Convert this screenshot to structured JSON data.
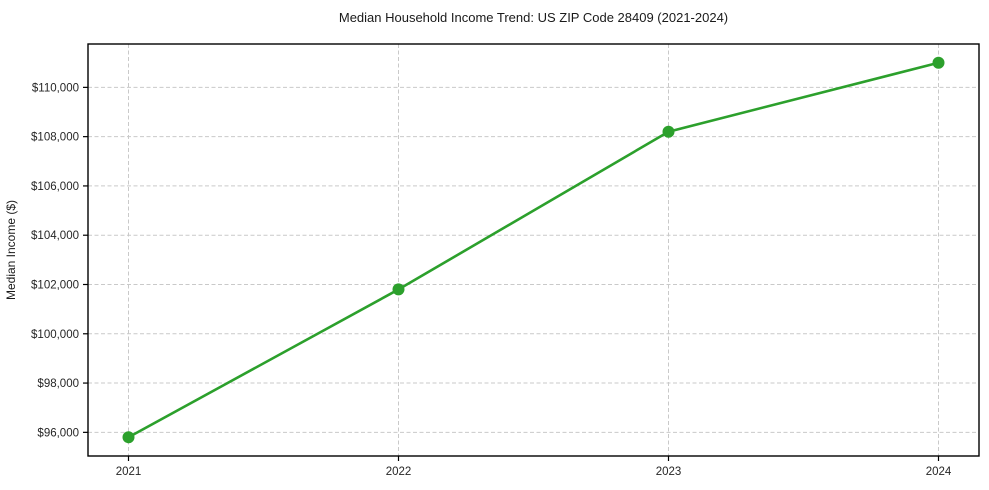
{
  "chart_data": {
    "type": "line",
    "title": "Median Household Income Trend: US ZIP Code 28409 (2021-2024)",
    "xlabel": "",
    "ylabel": "Median Income ($)",
    "x": [
      2021,
      2022,
      2023,
      2024
    ],
    "series": [
      {
        "name": "Median Household Income",
        "values": [
          95800,
          101800,
          108200,
          111000
        ]
      }
    ],
    "x_ticks": [
      {
        "value": 2021,
        "label": "2021"
      },
      {
        "value": 2022,
        "label": "2022"
      },
      {
        "value": 2023,
        "label": "2023"
      },
      {
        "value": 2024,
        "label": "2024"
      }
    ],
    "y_ticks": [
      {
        "value": 96000,
        "label": "$96,000"
      },
      {
        "value": 98000,
        "label": "$98,000"
      },
      {
        "value": 100000,
        "label": "$100,000"
      },
      {
        "value": 102000,
        "label": "$102,000"
      },
      {
        "value": 104000,
        "label": "$104,000"
      },
      {
        "value": 106000,
        "label": "$106,000"
      },
      {
        "value": 108000,
        "label": "$108,000"
      },
      {
        "value": 110000,
        "label": "$110,000"
      }
    ],
    "x_range": [
      2020.85,
      2024.15
    ],
    "y_range": [
      95040,
      111760
    ],
    "grid": true,
    "legend": "none",
    "colors": {
      "line": "#2ca02c",
      "marker": "#2ca02c",
      "grid": "#c9c9c9",
      "spine": "#000000",
      "tick_text": "#262626",
      "background": "#ffffff"
    }
  }
}
